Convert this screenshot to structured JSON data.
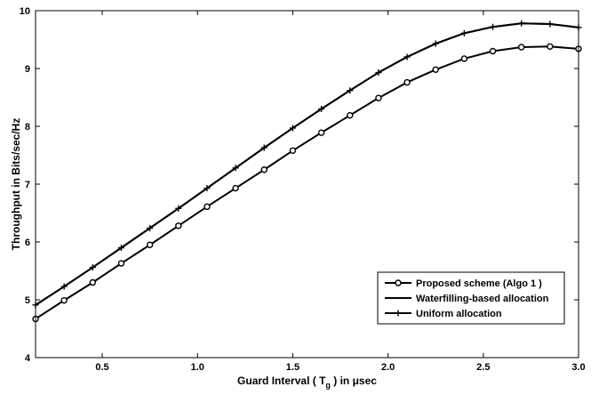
{
  "chart_data": {
    "type": "line",
    "xlabel_parts": {
      "pre": "Guard Interval ( T",
      "sub": "g",
      "post": " ) in μsec"
    },
    "ylabel": "Throughput in Bits/sec/Hz",
    "xlim": [
      0.15,
      3.0
    ],
    "ylim": [
      4,
      10
    ],
    "xticks": [
      0.5,
      1.0,
      1.5,
      2.0,
      2.5,
      3.0
    ],
    "xtick_labels": [
      "0.5",
      "1.0",
      "1.5",
      "2.0",
      "2.5",
      "3.0"
    ],
    "yticks": [
      4,
      5,
      6,
      7,
      8,
      9,
      10
    ],
    "ytick_labels": [
      "4",
      "5",
      "6",
      "7",
      "8",
      "9",
      "10"
    ],
    "grid": false,
    "legend_position": "bottom-right",
    "x": [
      0.15,
      0.3,
      0.45,
      0.6,
      0.75,
      0.9,
      1.05,
      1.2,
      1.35,
      1.5,
      1.65,
      1.8,
      1.95,
      2.1,
      2.25,
      2.4,
      2.55,
      2.7,
      2.85,
      3.0
    ],
    "series": [
      {
        "name": "Proposed scheme (Algo 1 )",
        "marker": "circle",
        "values": [
          4.67,
          4.99,
          5.3,
          5.63,
          5.95,
          6.28,
          6.61,
          6.93,
          7.25,
          7.58,
          7.89,
          8.19,
          8.49,
          8.76,
          8.98,
          9.17,
          9.3,
          9.37,
          9.38,
          9.34
        ]
      },
      {
        "name": "Waterfilling-based allocation",
        "marker": "none",
        "values": [
          4.91,
          5.23,
          5.56,
          5.9,
          6.24,
          6.58,
          6.93,
          7.28,
          7.63,
          7.97,
          8.3,
          8.62,
          8.93,
          9.2,
          9.43,
          9.61,
          9.72,
          9.78,
          9.77,
          9.71
        ]
      },
      {
        "name": "Uniform allocation",
        "marker": "plus",
        "values": [
          4.91,
          5.23,
          5.56,
          5.9,
          6.24,
          6.58,
          6.93,
          7.28,
          7.63,
          7.97,
          8.3,
          8.62,
          8.93,
          9.2,
          9.43,
          9.61,
          9.72,
          9.78,
          9.77,
          9.71
        ]
      }
    ]
  }
}
